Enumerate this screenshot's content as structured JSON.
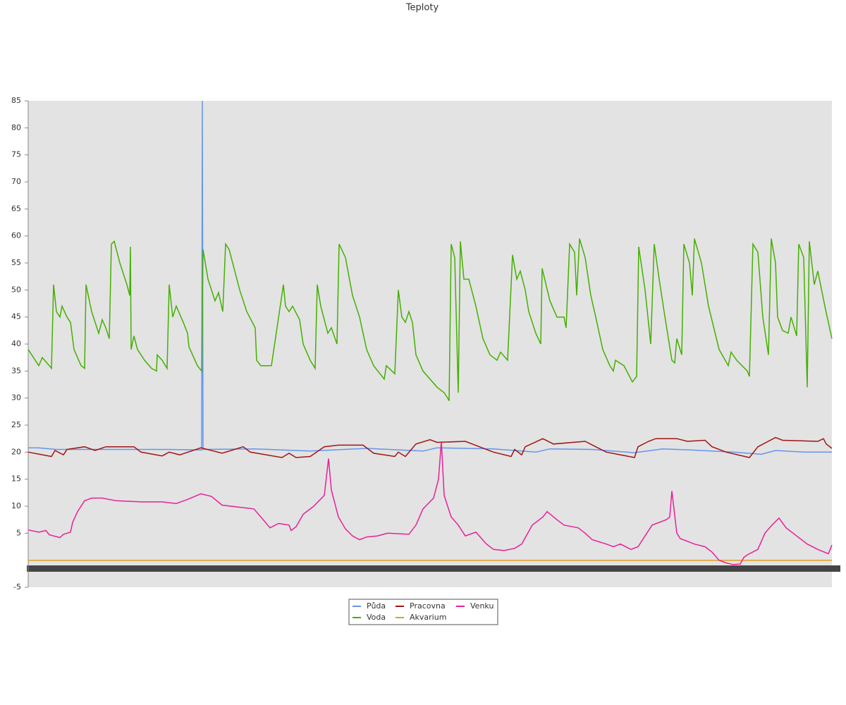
{
  "chart_data": {
    "type": "line",
    "title": "Teploty",
    "ylim": [
      -5,
      85
    ],
    "yticks": [
      -5,
      5,
      10,
      15,
      20,
      25,
      30,
      35,
      40,
      45,
      50,
      55,
      60,
      65,
      70,
      75,
      80,
      85
    ],
    "xlim": [
      0,
      1140
    ],
    "legend": "bottom",
    "series": [
      {
        "name": "Půda",
        "color": "#6495ed",
        "x": [
          0,
          15,
          40,
          120,
          200,
          246,
          247,
          248,
          320,
          400,
          480,
          560,
          580,
          660,
          700,
          720,
          740,
          800,
          860,
          900,
          940,
          1000,
          1040,
          1060,
          1100,
          1140
        ],
        "values": [
          20.8,
          20.8,
          20.5,
          20.5,
          20.5,
          20.4,
          85,
          20.5,
          20.6,
          20.2,
          20.7,
          20.2,
          20.8,
          20.6,
          20.2,
          20,
          20.6,
          20.5,
          19.9,
          20.6,
          20.4,
          20,
          19.6,
          20.3,
          20,
          20
        ]
      },
      {
        "name": "Voda",
        "color": "#44b000",
        "x": [
          0,
          10,
          15,
          20,
          30,
          33,
          36,
          40,
          45,
          48,
          55,
          60,
          65,
          75,
          80,
          82,
          90,
          100,
          105,
          110,
          115,
          118,
          122,
          130,
          140,
          144,
          145,
          146,
          150,
          155,
          165,
          175,
          182,
          183,
          190,
          197,
          200,
          205,
          210,
          220,
          226,
          228,
          240,
          246,
          248,
          255,
          265,
          270,
          276,
          280,
          285,
          290,
          300,
          310,
          322,
          324,
          330,
          345,
          362,
          365,
          370,
          375,
          385,
          390,
          400,
          407,
          410,
          415,
          425,
          430,
          438,
          441,
          450,
          460,
          470,
          480,
          490,
          505,
          508,
          520,
          525,
          530,
          535,
          540,
          545,
          550,
          560,
          580,
          590,
          595,
          597,
          600,
          605,
          610,
          613,
          618,
          625,
          635,
          645,
          655,
          665,
          670,
          680,
          687,
          693,
          698,
          705,
          710,
          720,
          727,
          729,
          740,
          750,
          760,
          763,
          768,
          775,
          778,
          782,
          790,
          798,
          805,
          815,
          825,
          830,
          833,
          845,
          857,
          863,
          866,
          875,
          883,
          888,
          895,
          902,
          913,
          917,
          920,
          927,
          930,
          938,
          942,
          945,
          955,
          965,
          980,
          993,
          997,
          1005,
          1020,
          1023,
          1028,
          1035,
          1042,
          1050,
          1054,
          1060,
          1063,
          1070,
          1078,
          1082,
          1090,
          1093,
          1100,
          1105,
          1108,
          1115,
          1120,
          1130,
          1140
        ],
        "values": [
          39,
          37,
          36,
          37.5,
          36,
          35.5,
          51,
          46,
          45,
          47,
          45,
          44,
          39,
          36,
          35.5,
          51,
          46,
          42,
          44.5,
          43,
          41,
          58.5,
          59,
          55,
          51,
          49,
          58,
          39,
          41.5,
          39,
          37,
          35.5,
          35,
          38,
          37,
          35.5,
          51,
          45,
          47,
          44,
          42,
          39.5,
          36,
          35,
          57.5,
          52,
          48,
          49.5,
          46,
          58.5,
          57.5,
          55,
          50,
          46,
          43,
          37,
          36,
          36,
          51,
          47,
          46,
          47,
          44.5,
          40,
          37,
          35.5,
          51,
          47,
          42,
          43,
          40,
          58.5,
          56,
          49,
          45,
          39,
          36,
          33.5,
          36,
          34.5,
          50,
          45,
          44,
          46,
          44,
          38,
          35,
          32,
          31,
          30,
          29.5,
          58.5,
          56,
          31,
          59,
          52,
          52,
          47,
          41,
          38,
          37,
          38.5,
          37,
          56.5,
          52,
          53.5,
          50,
          46,
          42,
          40,
          54,
          48,
          45,
          45,
          43,
          58.5,
          57,
          49,
          59.5,
          56,
          49,
          45,
          39,
          36,
          35,
          37,
          36,
          33,
          34,
          58,
          50,
          40,
          58.5,
          52,
          46,
          37,
          36.5,
          41,
          38,
          58.5,
          55,
          49,
          59.5,
          55,
          47,
          39,
          36,
          38.5,
          37,
          35,
          34,
          58.5,
          57,
          45,
          38,
          59.5,
          55,
          45,
          42.5,
          42,
          45,
          41.5,
          58.5,
          56,
          32,
          59,
          51,
          53.5,
          47,
          41
        ]
      },
      {
        "name": "Pracovna",
        "color": "#a01414",
        "x": [
          0,
          33,
          38,
          50,
          55,
          80,
          95,
          110,
          150,
          160,
          190,
          200,
          215,
          245,
          275,
          305,
          315,
          360,
          370,
          380,
          400,
          420,
          440,
          475,
          490,
          520,
          525,
          535,
          550,
          570,
          580,
          620,
          640,
          660,
          685,
          690,
          700,
          705,
          730,
          745,
          790,
          805,
          820,
          860,
          865,
          880,
          890,
          920,
          935,
          960,
          970,
          990,
          1023,
          1035,
          1060,
          1070,
          1120,
          1128,
          1132,
          1140
        ],
        "values": [
          20,
          19.2,
          20.3,
          19.5,
          20.5,
          21,
          20.3,
          21,
          21,
          20,
          19.3,
          20,
          19.5,
          20.8,
          19.8,
          21,
          20,
          19,
          19.8,
          19,
          19.2,
          21,
          21.3,
          21.3,
          19.8,
          19.2,
          20,
          19.2,
          21.5,
          22.3,
          21.8,
          22,
          21,
          20,
          19.2,
          20.5,
          19.5,
          21,
          22.5,
          21.5,
          22,
          21,
          20,
          19,
          21,
          22,
          22.5,
          22.5,
          22,
          22.2,
          21,
          20,
          19,
          21,
          22.7,
          22.2,
          22,
          22.5,
          21.5,
          20.7
        ]
      },
      {
        "name": "Akvarium",
        "color": "#e0a020",
        "x": [
          0,
          1140
        ],
        "values": [
          0,
          0
        ]
      },
      {
        "name": "Venku",
        "color": "#e8209a",
        "x": [
          0,
          15,
          25,
          30,
          45,
          50,
          60,
          63,
          70,
          80,
          90,
          105,
          125,
          160,
          190,
          210,
          225,
          245,
          260,
          275,
          300,
          320,
          330,
          343,
          355,
          370,
          373,
          380,
          390,
          405,
          420,
          426,
          430,
          440,
          450,
          460,
          470,
          480,
          495,
          510,
          540,
          550,
          560,
          575,
          582,
          586,
          590,
          600,
          610,
          620,
          635,
          650,
          660,
          675,
          690,
          700,
          715,
          730,
          736,
          750,
          760,
          780,
          790,
          800,
          820,
          830,
          840,
          855,
          865,
          875,
          885,
          905,
          910,
          913,
          920,
          925,
          945,
          960,
          970,
          980,
          990,
          1000,
          1010,
          1015,
          1020,
          1035,
          1045,
          1055,
          1065,
          1075,
          1090,
          1105,
          1120,
          1135,
          1140
        ],
        "values": [
          5.6,
          5.2,
          5.5,
          4.7,
          4.2,
          4.8,
          5.2,
          7,
          9,
          11,
          11.5,
          11.5,
          11,
          10.8,
          10.8,
          10.5,
          11.2,
          12.3,
          11.8,
          10.2,
          9.8,
          9.5,
          8,
          6,
          6.8,
          6.5,
          5.5,
          6.2,
          8.5,
          10,
          12,
          18.8,
          13,
          8,
          5.8,
          4.5,
          3.8,
          4.3,
          4.5,
          5,
          4.8,
          6.5,
          9.5,
          11.5,
          15,
          22,
          12,
          8,
          6.5,
          4.5,
          5.2,
          3,
          2,
          1.8,
          2.2,
          3,
          6.5,
          8,
          9,
          7.5,
          6.5,
          6,
          5,
          3.8,
          3,
          2.5,
          3,
          2,
          2.5,
          4.5,
          6.5,
          7.5,
          8,
          12.8,
          5,
          4,
          3,
          2.5,
          1.5,
          0,
          -0.5,
          -0.8,
          -0.7,
          0.5,
          1,
          2,
          5,
          6.5,
          7.8,
          6,
          4.5,
          3,
          2,
          1.2,
          2.8
        ]
      }
    ]
  }
}
